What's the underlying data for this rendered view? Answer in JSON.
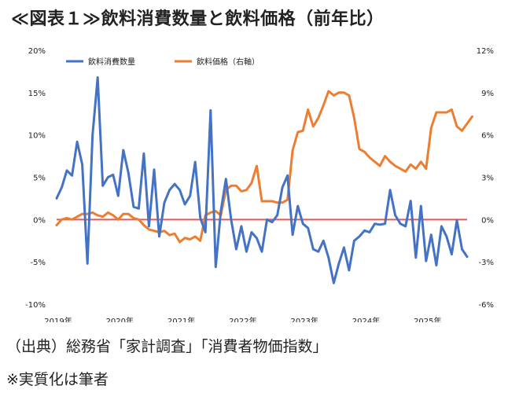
{
  "title": "≪図表１≫飲料消費数量と飲料価格（前年比）",
  "source_note": "（出典）総務省「家計調査」「消費者物価指数」",
  "author_note": "※実質化は筆者",
  "chart_data": {
    "type": "line",
    "title": "≪図表１≫飲料消費数量と飲料価格（前年比）",
    "x_tick_labels": [
      "2019年",
      "2020年",
      "2021年",
      "2022年",
      "2023年",
      "2024年",
      "2025年"
    ],
    "y_left": {
      "ticks": [
        "20%",
        "15%",
        "10%",
        "5%",
        "0%",
        "-5%",
        "-10%"
      ],
      "ylim": [
        -10,
        20
      ]
    },
    "y_right": {
      "ticks": [
        "12%",
        "9%",
        "6%",
        "3%",
        "0%",
        "-3%",
        "-6%"
      ],
      "ylim": [
        -6,
        12
      ]
    },
    "legend_position": "top-left",
    "grid": false,
    "zero_line_color": "#e05a5a",
    "series": [
      {
        "name": "飲料消費数量",
        "axis": "left",
        "color": "#4472c4",
        "values": [
          2.5,
          3.8,
          5.8,
          5.2,
          9.2,
          6.5,
          -5.2,
          10.0,
          16.8,
          4.0,
          5.0,
          5.3,
          2.8,
          8.2,
          5.5,
          1.5,
          1.3,
          7.8,
          -0.8,
          5.9,
          -2.0,
          2.0,
          3.5,
          4.2,
          3.5,
          1.8,
          2.8,
          6.8,
          0.2,
          -1.5,
          12.9,
          -5.6,
          1.0,
          4.8,
          0.0,
          -3.5,
          -0.8,
          -3.8,
          -1.5,
          -2.2,
          -3.8,
          0.0,
          -0.3,
          0.5,
          3.8,
          5.2,
          -1.8,
          1.6,
          -0.5,
          -1.0,
          -3.5,
          -3.8,
          -2.5,
          -4.5,
          -7.5,
          -5.2,
          -3.3,
          -6.0,
          -2.5,
          -2.0,
          -1.3,
          -1.5,
          -0.5,
          -0.6,
          -0.5,
          3.5,
          0.5,
          -0.5,
          -0.8,
          2.2,
          -4.5,
          1.6,
          -4.9,
          -1.8,
          -5.4,
          -0.8,
          -2.0,
          -4.1,
          -0.1,
          -3.5,
          -4.4
        ]
      },
      {
        "name": "飲料価格（右軸）",
        "axis": "right",
        "color": "#ed7d31",
        "values": [
          -0.4,
          0.0,
          0.1,
          0.0,
          0.2,
          0.4,
          0.4,
          0.5,
          0.3,
          0.2,
          0.5,
          0.3,
          0.0,
          0.4,
          0.4,
          0.1,
          0.0,
          -0.4,
          -0.7,
          -0.8,
          -0.9,
          -0.8,
          -1.1,
          -1.0,
          -1.6,
          -1.3,
          -1.4,
          -1.2,
          -1.5,
          0.3,
          0.5,
          0.6,
          0.3,
          2.1,
          2.4,
          2.4,
          2.0,
          2.1,
          2.6,
          3.8,
          1.3,
          1.3,
          1.3,
          1.2,
          1.2,
          1.4,
          4.9,
          6.2,
          6.3,
          7.8,
          6.6,
          7.2,
          8.1,
          9.1,
          8.8,
          9.0,
          9.0,
          8.8,
          7.2,
          5.0,
          4.8,
          4.4,
          4.1,
          3.8,
          4.5,
          4.1,
          3.8,
          3.6,
          3.4,
          3.9,
          3.6,
          4.1,
          3.6,
          6.5,
          7.6,
          7.6,
          7.6,
          7.8,
          6.6,
          6.3,
          6.8,
          7.3
        ]
      }
    ]
  }
}
